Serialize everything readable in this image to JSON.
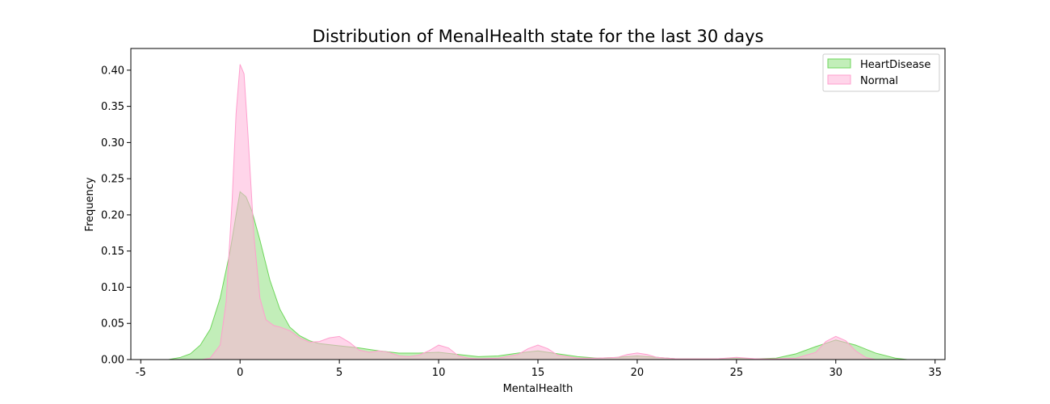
{
  "chart_data": {
    "type": "area",
    "title": "Distribution of MenalHealth state for the last 30 days",
    "xlabel": "MentalHealth",
    "ylabel": "Frequency",
    "xlim": [
      -5.5,
      35.5
    ],
    "ylim": [
      0,
      0.43
    ],
    "xticks": [
      -5,
      0,
      5,
      10,
      15,
      20,
      25,
      30,
      35
    ],
    "yticks": [
      0.0,
      0.05,
      0.1,
      0.15,
      0.2,
      0.25,
      0.3,
      0.35,
      0.4
    ],
    "ytick_labels": [
      "0.00",
      "0.05",
      "0.10",
      "0.15",
      "0.20",
      "0.25",
      "0.30",
      "0.35",
      "0.40"
    ],
    "grid": false,
    "legend_position": "top-right",
    "series": [
      {
        "name": "HeartDisease",
        "fill": "#90e080",
        "stroke": "#6fd65c",
        "points": [
          [
            -3.6,
            0.0
          ],
          [
            -3,
            0.003
          ],
          [
            -2.5,
            0.008
          ],
          [
            -2,
            0.02
          ],
          [
            -1.5,
            0.042
          ],
          [
            -1,
            0.085
          ],
          [
            -0.5,
            0.15
          ],
          [
            -0.2,
            0.2
          ],
          [
            0,
            0.232
          ],
          [
            0.3,
            0.225
          ],
          [
            0.6,
            0.205
          ],
          [
            1,
            0.165
          ],
          [
            1.5,
            0.11
          ],
          [
            2,
            0.07
          ],
          [
            2.5,
            0.045
          ],
          [
            3,
            0.033
          ],
          [
            3.5,
            0.026
          ],
          [
            4,
            0.022
          ],
          [
            5,
            0.019
          ],
          [
            6,
            0.016
          ],
          [
            7,
            0.012
          ],
          [
            8,
            0.009
          ],
          [
            9,
            0.009
          ],
          [
            10,
            0.01
          ],
          [
            11,
            0.007
          ],
          [
            12,
            0.004
          ],
          [
            13,
            0.005
          ],
          [
            14,
            0.009
          ],
          [
            15,
            0.012
          ],
          [
            16,
            0.008
          ],
          [
            17,
            0.004
          ],
          [
            18,
            0.002
          ],
          [
            19,
            0.003
          ],
          [
            20,
            0.005
          ],
          [
            21,
            0.003
          ],
          [
            22,
            0.001
          ],
          [
            23,
            0.001
          ],
          [
            24,
            0.001
          ],
          [
            25,
            0.002
          ],
          [
            26,
            0.001
          ],
          [
            27,
            0.002
          ],
          [
            28,
            0.008
          ],
          [
            29,
            0.018
          ],
          [
            30,
            0.027
          ],
          [
            31,
            0.02
          ],
          [
            32,
            0.009
          ],
          [
            33,
            0.002
          ],
          [
            33.6,
            0.0
          ]
        ]
      },
      {
        "name": "Normal",
        "fill": "#ffb3d9",
        "stroke": "#ff9fce",
        "points": [
          [
            -1.9,
            0.0
          ],
          [
            -1.5,
            0.002
          ],
          [
            -1,
            0.02
          ],
          [
            -0.7,
            0.08
          ],
          [
            -0.4,
            0.22
          ],
          [
            -0.2,
            0.34
          ],
          [
            0,
            0.408
          ],
          [
            0.2,
            0.395
          ],
          [
            0.4,
            0.31
          ],
          [
            0.7,
            0.17
          ],
          [
            1,
            0.085
          ],
          [
            1.3,
            0.055
          ],
          [
            1.7,
            0.047
          ],
          [
            2,
            0.045
          ],
          [
            2.5,
            0.04
          ],
          [
            3,
            0.03
          ],
          [
            3.5,
            0.024
          ],
          [
            4,
            0.025
          ],
          [
            4.5,
            0.03
          ],
          [
            5,
            0.032
          ],
          [
            5.5,
            0.024
          ],
          [
            6,
            0.013
          ],
          [
            6.5,
            0.01
          ],
          [
            7,
            0.012
          ],
          [
            7.5,
            0.01
          ],
          [
            8,
            0.005
          ],
          [
            8.5,
            0.004
          ],
          [
            9,
            0.006
          ],
          [
            9.5,
            0.012
          ],
          [
            10,
            0.02
          ],
          [
            10.5,
            0.016
          ],
          [
            11,
            0.005
          ],
          [
            11.5,
            0.002
          ],
          [
            12,
            0.001
          ],
          [
            13,
            0.002
          ],
          [
            14,
            0.007
          ],
          [
            14.5,
            0.015
          ],
          [
            15,
            0.02
          ],
          [
            15.5,
            0.015
          ],
          [
            16,
            0.006
          ],
          [
            17,
            0.002
          ],
          [
            18,
            0.002
          ],
          [
            19,
            0.003
          ],
          [
            19.5,
            0.007
          ],
          [
            20,
            0.009
          ],
          [
            20.5,
            0.007
          ],
          [
            21,
            0.003
          ],
          [
            22,
            0.001
          ],
          [
            23,
            0.001
          ],
          [
            24,
            0.001
          ],
          [
            25,
            0.003
          ],
          [
            26,
            0.001
          ],
          [
            27,
            0.001
          ],
          [
            28,
            0.002
          ],
          [
            29,
            0.01
          ],
          [
            29.5,
            0.025
          ],
          [
            30,
            0.032
          ],
          [
            30.5,
            0.026
          ],
          [
            31,
            0.012
          ],
          [
            31.5,
            0.003
          ],
          [
            32,
            0.0
          ]
        ]
      }
    ]
  }
}
